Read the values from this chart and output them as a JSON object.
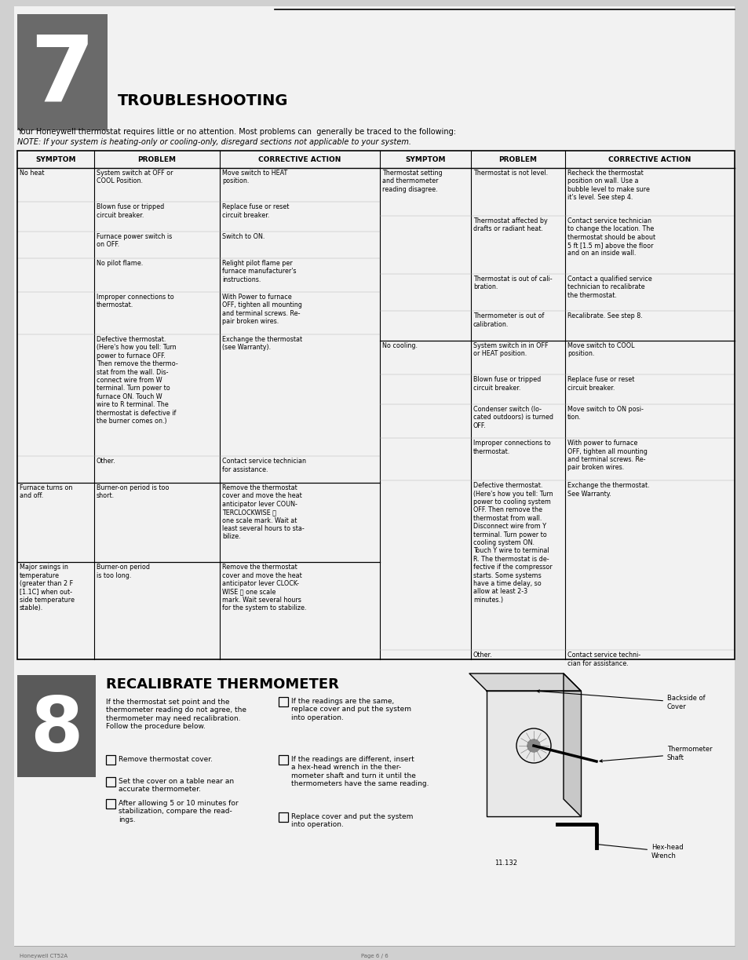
{
  "page_bg": "#d0d0d0",
  "content_bg": "#f5f5f5",
  "title7": "TROUBLESHOOTING",
  "intro_line1": "Your Honeywell thermostat requires little or no attention. Most problems can  generally be traced to the following:",
  "intro_line2": "NOTE: If your system is heating-only or cooling-only, disregard sections not applicable to your system.",
  "title8": "RECALIBRATE THERMOMETER",
  "figure_num": "11.132",
  "left_rows": [
    [
      "No heat",
      "System switch at OFF or\nCOOL Position.",
      "Move switch to HEAT\nposition.",
      3.2
    ],
    [
      "",
      "Blown fuse or tripped\ncircuit breaker.",
      "Replace fuse or reset\ncircuit breaker.",
      2.8
    ],
    [
      "",
      "Furnace power switch is\non OFF.",
      "Switch to ON.",
      2.5
    ],
    [
      "",
      "No pilot flame.",
      "Relight pilot flame per\nfurnace manufacturer's\ninstructions.",
      3.2
    ],
    [
      "",
      "Improper connections to\nthermostat.",
      "With Power to furnace\nOFF, tighten all mounting\nand terminal screws. Re-\npair broken wires.",
      4.0
    ],
    [
      "",
      "Defective thermostat.\n(Here's how you tell: Turn\npower to furnace OFF.\nThen remove the thermo-\nstat from the wall. Dis-\nconnect wire from W\nterminal. Turn power to\nfurnace ON. Touch W\nwire to R terminal. The\nthermostat is defective if\nthe burner comes on.)",
      "Exchange the thermostat\n(see Warranty).",
      11.5
    ],
    [
      "",
      "Other.",
      "Contact service technician\nfor assistance.",
      2.5
    ],
    [
      "Furnace turns on\nand off.",
      "Burner-on period is too\nshort.",
      "Remove the thermostat\ncover and move the heat\nanticipator lever COUN-\nTERCLOCKWISE ⮣\none scale mark. Wait at\nleast several hours to sta-\nbilize.",
      7.5
    ],
    [
      "Major swings in\ntemperature\n(greater than 2 F\n[1.1C] when out-\nside temperature\nstable).",
      "Burner-on period\nis too long.",
      "Remove the thermostat\ncover and move the heat\nanticipator lever CLOCK-\nWISE ⮢ one scale\nmark. Wait several hours\nfor the system to stabilize.",
      7.5
    ]
  ],
  "right_rows": [
    [
      "Thermostat setting\nand thermometer\nreading disagree.",
      "Thermostat is not level.",
      "Recheck the thermostat\nposition on wall. Use a\nbubble level to make sure\nit's level. See step 4.",
      4.5
    ],
    [
      "",
      "Thermostat affected by\ndrafts or radiant heat.",
      "Contact service technician\nto change the location. The\nthermostat should be about\n5 ft [1.5 m] above the floor\nand on an inside wall.",
      5.5
    ],
    [
      "",
      "Thermostat is out of cali-\nbration.",
      "Contact a qualified service\ntechnician to recalibrate\nthe thermostat.",
      3.5
    ],
    [
      "",
      "Thermometer is out of\ncalibration.",
      "Recalibrate. See step 8.",
      2.8
    ],
    [
      "No cooling.",
      "System switch in in OFF\nor HEAT position.",
      "Move switch to COOL\nposition.",
      3.2
    ],
    [
      "",
      "Blown fuse or tripped\ncircuit breaker.",
      "Replace fuse or reset\ncircuit breaker.",
      2.8
    ],
    [
      "",
      "Condenser switch (lo-\ncated outdoors) is turned\nOFF.",
      "Move switch to ON posi-\ntion.",
      3.2
    ],
    [
      "",
      "Improper connections to\nthermostat.",
      "With power to furnace\nOFF, tighten all mounting\nand terminal screws. Re-\npair broken wires.",
      4.0
    ],
    [
      "",
      "Defective thermostat.\n(Here's how you tell: Turn\npower to cooling system\nOFF. Then remove the\nthermostat from wall.\nDisconnect wire from Y\nterminal. Turn power to\ncooling system ON.\nTouch Y wire to terminal\nR. The thermostat is de-\nfective if the compressor\nstarts. Some systems\nhave a time delay, so\nallow at least 2-3\nminutes.)",
      "Exchange the thermostat.\nSee Warranty.",
      16.0
    ],
    [
      "",
      "Other.",
      "Contact service techni-\ncian for assistance.",
      2.8
    ]
  ],
  "steps_left": [
    "Remove thermostat cover.",
    "Set the cover on a table near an\naccurate thermometer.",
    "After allowing 5 or 10 minutes for\nstabilization, compare the read-\nings."
  ],
  "steps_right": [
    "If the readings are the same,\nreplace cover and put the system\ninto operation.",
    "If the readings are different, insert\na hex-head wrench in the ther-\nmometer shaft and turn it until the\nthermometers have the same reading.",
    "Replace cover and put the system\ninto operation."
  ],
  "sec8_intro": "If the thermostat set point and the\nthermometer reading do not agree, the\nthermometer may need recalibration.\nFollow the procedure below."
}
